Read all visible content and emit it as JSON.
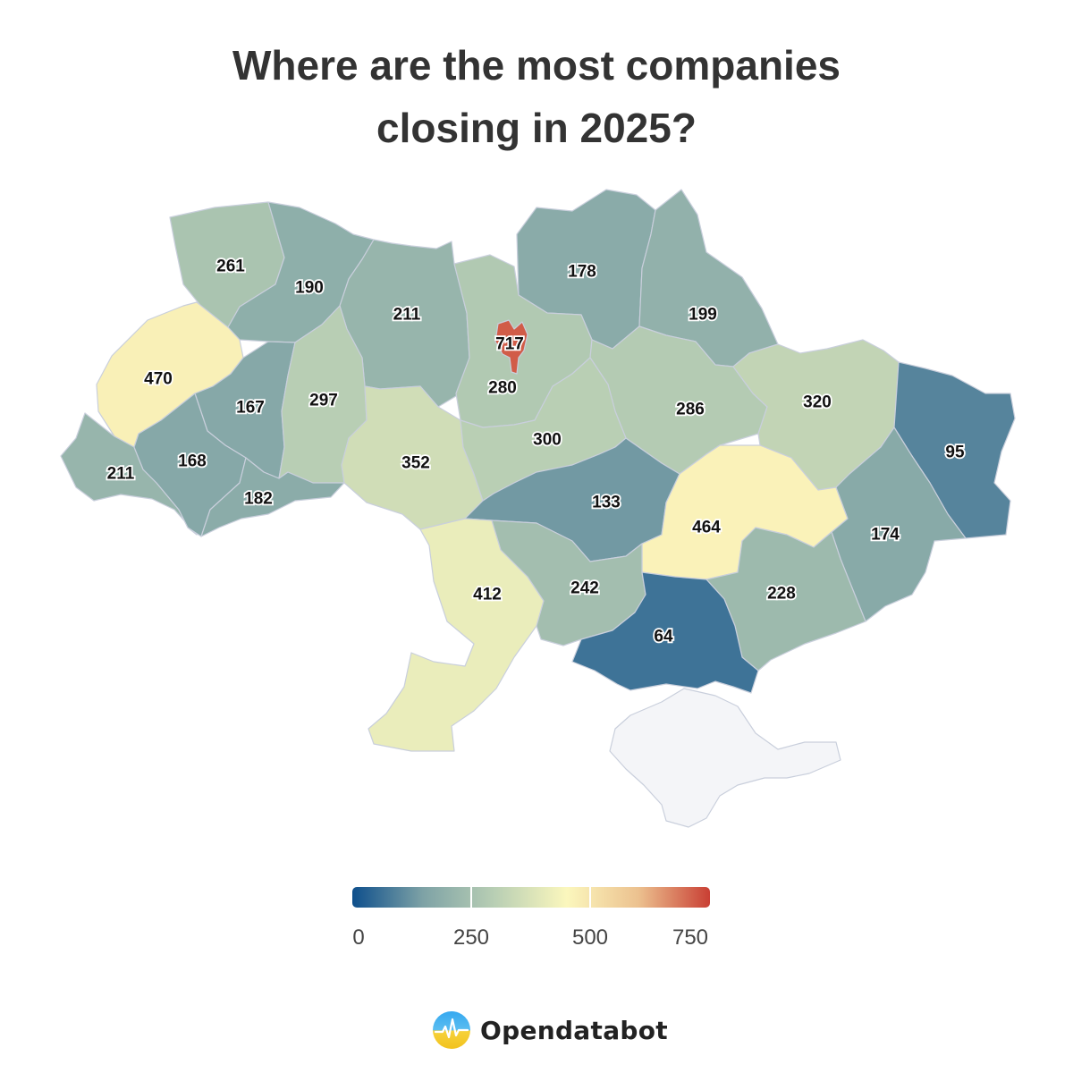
{
  "title_line1": "Where are the most companies",
  "title_line2": "closing in 2025?",
  "legend": {
    "ticks": [
      "0",
      "250",
      "500",
      "750"
    ],
    "min": 0,
    "max": 750,
    "colors": [
      "#0e4f8c",
      "#7fa3a6",
      "#b9cfb4",
      "#fbf7bd",
      "#ecc18f",
      "#c93f34"
    ]
  },
  "regions": [
    {
      "id": "volyn",
      "value": 261,
      "label": "261"
    },
    {
      "id": "rivne",
      "value": 190,
      "label": "190"
    },
    {
      "id": "zhytomyr",
      "value": 211,
      "label": "211"
    },
    {
      "id": "kyiv-city",
      "value": 717,
      "label": "717"
    },
    {
      "id": "chernihiv",
      "value": 178,
      "label": "178"
    },
    {
      "id": "sumy",
      "value": 199,
      "label": "199"
    },
    {
      "id": "lviv",
      "value": 470,
      "label": "470"
    },
    {
      "id": "ternopil",
      "value": 167,
      "label": "167"
    },
    {
      "id": "khmelnytskyi",
      "value": 297,
      "label": "297"
    },
    {
      "id": "kyiv-oblast",
      "value": 280,
      "label": "280"
    },
    {
      "id": "poltava",
      "value": 286,
      "label": "286"
    },
    {
      "id": "kharkiv",
      "value": 320,
      "label": "320"
    },
    {
      "id": "luhansk",
      "value": 95,
      "label": "95"
    },
    {
      "id": "zakarpattia",
      "value": 211,
      "label": "211"
    },
    {
      "id": "ivano-frankivsk",
      "value": 168,
      "label": "168"
    },
    {
      "id": "chernivtsi",
      "value": 182,
      "label": "182"
    },
    {
      "id": "vinnytsia",
      "value": 352,
      "label": "352"
    },
    {
      "id": "cherkasy",
      "value": 300,
      "label": "300"
    },
    {
      "id": "kirovohrad",
      "value": 133,
      "label": "133"
    },
    {
      "id": "dnipropetrovsk",
      "value": 464,
      "label": "464"
    },
    {
      "id": "donetsk",
      "value": 174,
      "label": "174"
    },
    {
      "id": "odesa",
      "value": 412,
      "label": "412"
    },
    {
      "id": "mykolaiv",
      "value": 242,
      "label": "242"
    },
    {
      "id": "zaporizhzhia",
      "value": 228,
      "label": "228"
    },
    {
      "id": "kherson",
      "value": 64,
      "label": "64"
    },
    {
      "id": "crimea",
      "value": null,
      "label": ""
    }
  ],
  "brand": {
    "name": "Opendatabot"
  }
}
